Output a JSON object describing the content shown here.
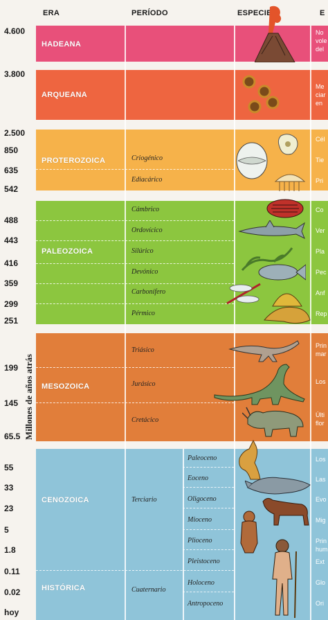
{
  "headers": {
    "era": "ERA",
    "periodo": "PERÍODO",
    "especies": "ESPECIES",
    "extra": "E"
  },
  "yaxis": "Millones de años atrás",
  "ticks": [
    "4.600",
    "3.800",
    "2.500",
    "850",
    "635",
    "542",
    "488",
    "443",
    "416",
    "359",
    "299",
    "251",
    "199",
    "145",
    "65.5",
    "55",
    "33",
    "23",
    "5",
    "1.8",
    "0.11",
    "0.02",
    "hoy"
  ],
  "eras": {
    "hadeana": "HADEANA",
    "arqueana": "ARQUEANA",
    "proterozoica": "PROTEROZOICA",
    "paleozoica": "PALEOZOICA",
    "mesozoica": "MESOZOICA",
    "cenozoica": "CENOZOICA",
    "historica": "HISTÓRICA"
  },
  "periods": {
    "proterozoica": [
      "Criogénico",
      "Ediacárico"
    ],
    "paleozoica": [
      "Cámbrico",
      "Ordovícico",
      "Silúrico",
      "Devónico",
      "Carbonífero",
      "Pérmico"
    ],
    "mesozoica": [
      "Triásico",
      "Jurásico",
      "Cretácico"
    ],
    "cenozoica": [
      "Terciario",
      "Cuaternario"
    ]
  },
  "epochs": [
    "Paleoceno",
    "Eoceno",
    "Oligoceno",
    "Mioceno",
    "Plioceno",
    "Pleistoceno",
    "Holoceno",
    "Antropoceno"
  ],
  "descriptions": {
    "hadeana": [
      "No",
      "vole",
      "del"
    ],
    "arqueana": [
      "Me",
      "ciar",
      "en"
    ],
    "proterozoica": [
      "Cél",
      "Tie",
      "Pri"
    ],
    "paleozoica": [
      "Co",
      "Ver",
      "Pla",
      "Pec",
      "Anf",
      "Rep"
    ],
    "mesozoica": [
      "Prin",
      "mar",
      "Los",
      "Últi",
      "flor"
    ],
    "cenozoica": [
      "Los",
      "Las",
      "Evo",
      "Mig",
      "Prin",
      "hum",
      "Ext",
      "Glo",
      "Ori"
    ]
  },
  "colors": {
    "hadeana": "#e8507a",
    "arqueana": "#ee6540",
    "proterozoica": "#f6b24a",
    "paleozoica": "#8cc63f",
    "mesozoica": "#e17e3a",
    "cenozoica": "#8fc4d9"
  },
  "icons": [
    "volcano-icon",
    "bacteria-icon",
    "cell-icon",
    "amoeba-icon",
    "jellyfish-icon",
    "trilobite-icon",
    "shark-icon",
    "seaweed-icon",
    "fish-icon",
    "dragonfly-icon",
    "dimetrodon-icon",
    "dinosaur-icon",
    "brachiosaurus-icon",
    "triceratops-icon",
    "kangaroo-icon",
    "whale-icon",
    "horse-icon",
    "monkey-icon",
    "human-icon"
  ]
}
